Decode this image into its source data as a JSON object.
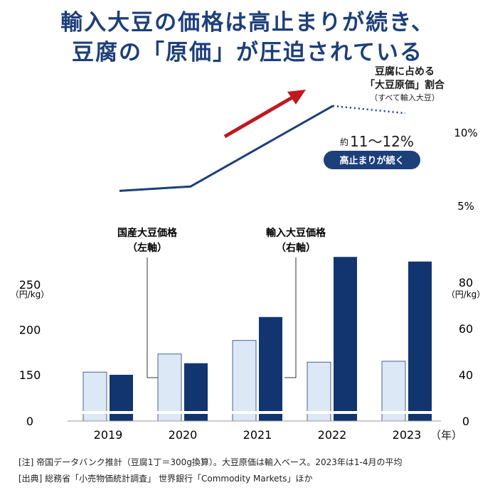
{
  "title": {
    "line1": "輸入大豆の価格は高止まりが続き、",
    "line2": "豆腐の「原価」が圧迫されている"
  },
  "line_annotation": {
    "label_line1": "豆腐に占める",
    "label_line2": "「大豆原価」割合",
    "label_line3": "（すべて輸入大豆）",
    "range_prefix": "約",
    "range_value": "11〜12%",
    "badge": "高止まりが続く"
  },
  "legend": {
    "domestic_line1": "国産大豆価格",
    "domestic_line2": "（左軸）",
    "imported_line1": "輸入大豆価格",
    "imported_line2": "（右軸）"
  },
  "colors": {
    "domestic": "#dce8f5",
    "domestic_border": "#1d3f7a",
    "imported": "#123570",
    "line": "#1d3f7a",
    "arrow": "#c0191f",
    "badge": "#1d3f7a"
  },
  "notes": {
    "note": "[注] 帝国データバンク推計（豆腐1丁＝300g換算）。大豆原価は輸入ベース。2023年は1-4月の平均",
    "source": "[出典] 総務省「小売物価統計調査」 世界銀行「Commodity Markets」ほか"
  },
  "chart_data": [
    {
      "type": "bar",
      "title": "",
      "categories": [
        "2019",
        "2020",
        "2021",
        "2022",
        "2023"
      ],
      "x_unit": "（年）",
      "series": [
        {
          "name": "国産大豆価格",
          "axis": "left",
          "values": [
            153,
            173,
            188,
            164,
            165
          ]
        },
        {
          "name": "輸入大豆価格",
          "axis": "right",
          "values": [
            40,
            45,
            65,
            91,
            89
          ]
        }
      ],
      "left_axis": {
        "unit": "（円/kg）",
        "ticks": [
          0,
          150,
          200,
          250
        ],
        "tick_labels": [
          "0",
          "150",
          "200",
          "250"
        ]
      },
      "right_axis": {
        "unit": "（円/kg）",
        "ticks": [
          0,
          40,
          60,
          80
        ],
        "tick_labels": [
          "0",
          "40",
          "60",
          "80"
        ]
      }
    },
    {
      "type": "line",
      "title": "豆腐に占める「大豆原価」割合",
      "x": [
        "2019",
        "2020",
        "2021",
        "2022",
        "2023"
      ],
      "values": [
        6.0,
        6.3,
        null,
        11.8,
        11.3
      ],
      "axis_ticks": [
        5,
        10
      ],
      "axis_tick_labels": [
        "5%",
        "10%"
      ]
    }
  ]
}
